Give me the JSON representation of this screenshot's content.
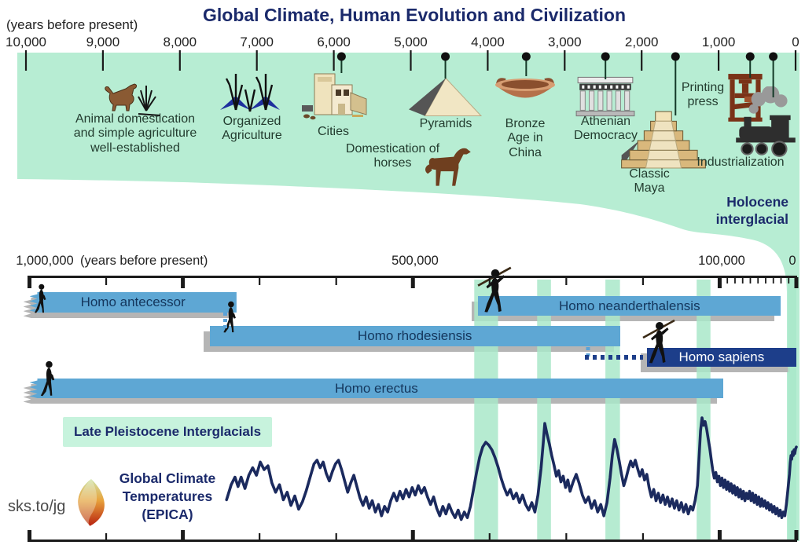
{
  "title": "Global Climate, Human Evolution and Civilization",
  "colors": {
    "panel_green": "#b7edd3",
    "band_green": "#a9e7c9",
    "bar_blue": "#5ea7d4",
    "bar_navy": "#1d3e8a",
    "shadow_gray": "#b5b5b5",
    "navy_text": "#1b2a6b",
    "curve_navy": "#1b2a5e",
    "event_text": "#233c2f"
  },
  "top_timeline": {
    "unit_label": "(years before present)",
    "ticks": [
      {
        "label": "10,000",
        "years": 10000
      },
      {
        "label": "9,000",
        "years": 9000
      },
      {
        "label": "8,000",
        "years": 8000
      },
      {
        "label": "7,000",
        "years": 7000
      },
      {
        "label": "6,000",
        "years": 6000
      },
      {
        "label": "5,000",
        "years": 5000
      },
      {
        "label": "4,000",
        "years": 4000
      },
      {
        "label": "3,000",
        "years": 3000
      },
      {
        "label": "2,000",
        "years": 2000
      },
      {
        "label": "1,000",
        "years": 1000
      },
      {
        "label": "0",
        "years": 0
      }
    ],
    "events": [
      {
        "label": "Animal domestication\nand simple agriculture\nwell-established",
        "icon": "dog-and-grass-icon",
        "pin_years": null
      },
      {
        "label": "Organized\nAgriculture",
        "icon": "grain-plants-icon",
        "pin_years": null
      },
      {
        "label": "Cities",
        "icon": "city-buildings-icon",
        "pin_years": 5900
      },
      {
        "label": "Domestication of\nhorses",
        "icon": "horse-icon",
        "pin_years": null
      },
      {
        "label": "Pyramids",
        "icon": "pyramid-icon",
        "pin_years": 4550
      },
      {
        "label": "Bronze\nAge in\nChina",
        "icon": "bronze-vessel-icon",
        "pin_years": 3500
      },
      {
        "label": "Athenian\nDemocracy",
        "icon": "parthenon-icon",
        "pin_years": 2470
      },
      {
        "label": "Classic\nMaya",
        "icon": "maya-pyramid-icon",
        "pin_years": 1560
      },
      {
        "label": "Printing\npress",
        "icon": "printing-press-icon",
        "pin_years": 590
      },
      {
        "label": "Industrialization",
        "icon": "locomotive-icon",
        "pin_years": 290
      }
    ],
    "era_label": "Holocene\ninterglacial"
  },
  "lower_timeline": {
    "labels": {
      "left": "1,000,000",
      "unit": "(years before present)",
      "middle": "500,000",
      "right": "100,000",
      "zero": "0"
    },
    "species": [
      {
        "name": "Homo antecessor",
        "from_years": 1000000,
        "to_years": 730000
      },
      {
        "name": "Homo neanderthalensis",
        "from_years": 415000,
        "to_years": 20000
      },
      {
        "name": "Homo rhodesiensis",
        "from_years": 765000,
        "to_years": 230000
      },
      {
        "name": "Homo sapiens",
        "from_years": 195000,
        "to_years": 0
      },
      {
        "name": "Homo erectus",
        "from_years": 1000000,
        "to_years": 95000
      }
    ],
    "interglacials_label": "Late Pleistocene Interglacials",
    "interglacial_bands_kyr": [
      [
        420,
        389
      ],
      [
        338,
        320
      ],
      [
        249,
        230
      ],
      [
        130,
        112
      ],
      [
        11,
        0
      ]
    ]
  },
  "climate": {
    "label": "Global Climate\nTemperatures\n(EPICA)"
  },
  "watermark": "sks.to/jg",
  "chart_data": {
    "type": "line",
    "title": "Global Climate Temperatures (EPICA)",
    "x_unit": "thousand years before present",
    "x_range": [
      743,
      0
    ],
    "y_unit": "relative temperature (axis unlabeled in figure)",
    "legend": "none",
    "grid": "off",
    "interglacial_bands_kyr": [
      [
        420,
        389
      ],
      [
        338,
        320
      ],
      [
        249,
        230
      ],
      [
        130,
        112
      ],
      [
        11,
        0
      ]
    ],
    "points_kyr_value": [
      [
        743,
        -5.2
      ],
      [
        737,
        -3.6
      ],
      [
        732,
        -2.8
      ],
      [
        728,
        -3.8
      ],
      [
        724,
        -2.8
      ],
      [
        719,
        -4.0
      ],
      [
        714,
        -2.6
      ],
      [
        709,
        -1.8
      ],
      [
        704,
        -2.6
      ],
      [
        699,
        -1.2
      ],
      [
        694,
        -2.0
      ],
      [
        689,
        -1.6
      ],
      [
        684,
        -3.4
      ],
      [
        679,
        -4.4
      ],
      [
        674,
        -3.6
      ],
      [
        669,
        -5.2
      ],
      [
        664,
        -4.4
      ],
      [
        659,
        -5.8
      ],
      [
        654,
        -4.8
      ],
      [
        649,
        -6.2
      ],
      [
        644,
        -5.4
      ],
      [
        639,
        -4.2
      ],
      [
        634,
        -2.8
      ],
      [
        629,
        -1.4
      ],
      [
        625,
        -1.0
      ],
      [
        621,
        -1.8
      ],
      [
        617,
        -1.2
      ],
      [
        613,
        -2.4
      ],
      [
        609,
        -3.2
      ],
      [
        605,
        -2.2
      ],
      [
        601,
        -1.4
      ],
      [
        597,
        -1.0
      ],
      [
        593,
        -2.0
      ],
      [
        589,
        -3.2
      ],
      [
        585,
        -4.4
      ],
      [
        581,
        -3.4
      ],
      [
        577,
        -2.6
      ],
      [
        573,
        -3.8
      ],
      [
        569,
        -5.0
      ],
      [
        565,
        -5.8
      ],
      [
        561,
        -4.9
      ],
      [
        557,
        -6.1
      ],
      [
        553,
        -5.3
      ],
      [
        549,
        -6.5
      ],
      [
        545,
        -5.7
      ],
      [
        541,
        -6.9
      ],
      [
        537,
        -5.9
      ],
      [
        533,
        -6.5
      ],
      [
        529,
        -5.3
      ],
      [
        525,
        -4.5
      ],
      [
        521,
        -5.3
      ],
      [
        517,
        -4.3
      ],
      [
        513,
        -5.1
      ],
      [
        509,
        -4.1
      ],
      [
        505,
        -4.9
      ],
      [
        501,
        -3.9
      ],
      [
        497,
        -4.7
      ],
      [
        493,
        -3.7
      ],
      [
        489,
        -4.5
      ],
      [
        485,
        -3.9
      ],
      [
        481,
        -4.9
      ],
      [
        477,
        -5.7
      ],
      [
        473,
        -4.9
      ],
      [
        469,
        -6.1
      ],
      [
        465,
        -6.9
      ],
      [
        461,
        -5.9
      ],
      [
        457,
        -6.7
      ],
      [
        453,
        -5.7
      ],
      [
        449,
        -6.5
      ],
      [
        445,
        -7.1
      ],
      [
        441,
        -6.3
      ],
      [
        437,
        -7.3
      ],
      [
        433,
        -6.5
      ],
      [
        429,
        -7.1
      ],
      [
        425,
        -5.9
      ],
      [
        421,
        -4.1
      ],
      [
        417,
        -2.3
      ],
      [
        413,
        -0.7
      ],
      [
        409,
        0.4
      ],
      [
        405,
        0.9
      ],
      [
        401,
        0.6
      ],
      [
        397,
        0.1
      ],
      [
        393,
        -0.7
      ],
      [
        389,
        -1.7
      ],
      [
        385,
        -2.9
      ],
      [
        381,
        -3.9
      ],
      [
        377,
        -4.7
      ],
      [
        373,
        -4.1
      ],
      [
        369,
        -5.1
      ],
      [
        365,
        -4.5
      ],
      [
        361,
        -5.5
      ],
      [
        357,
        -4.7
      ],
      [
        353,
        -5.7
      ],
      [
        349,
        -6.3
      ],
      [
        345,
        -5.5
      ],
      [
        341,
        -6.5
      ],
      [
        337,
        -4.7
      ],
      [
        333,
        -1.9
      ],
      [
        330,
        0.9
      ],
      [
        328,
        2.9
      ],
      [
        325,
        1.7
      ],
      [
        322,
        0.7
      ],
      [
        319,
        -0.5
      ],
      [
        316,
        -1.5
      ],
      [
        313,
        -2.7
      ],
      [
        310,
        -2.1
      ],
      [
        307,
        -3.3
      ],
      [
        304,
        -2.7
      ],
      [
        301,
        -3.9
      ],
      [
        298,
        -3.1
      ],
      [
        295,
        -4.3
      ],
      [
        291,
        -3.3
      ],
      [
        287,
        -2.5
      ],
      [
        283,
        -3.5
      ],
      [
        279,
        -4.7
      ],
      [
        275,
        -5.5
      ],
      [
        271,
        -4.9
      ],
      [
        267,
        -6.1
      ],
      [
        263,
        -5.3
      ],
      [
        259,
        -6.5
      ],
      [
        255,
        -5.7
      ],
      [
        251,
        -6.9
      ],
      [
        247,
        -5.5
      ],
      [
        243,
        -2.9
      ],
      [
        240,
        -0.5
      ],
      [
        237,
        1.2
      ],
      [
        234,
        0.2
      ],
      [
        231,
        -1.1
      ],
      [
        228,
        -2.5
      ],
      [
        225,
        -3.7
      ],
      [
        222,
        -2.9
      ],
      [
        219,
        -1.9
      ],
      [
        216,
        -1.1
      ],
      [
        213,
        -1.7
      ],
      [
        210,
        -1.0
      ],
      [
        207,
        -1.9
      ],
      [
        204,
        -2.7
      ],
      [
        201,
        -2.0
      ],
      [
        198,
        -3.1
      ],
      [
        195,
        -2.5
      ],
      [
        192,
        -3.9
      ],
      [
        189,
        -4.9
      ],
      [
        186,
        -4.1
      ],
      [
        183,
        -5.3
      ],
      [
        180,
        -4.5
      ],
      [
        177,
        -5.5
      ],
      [
        174,
        -4.7
      ],
      [
        171,
        -5.7
      ],
      [
        168,
        -4.9
      ],
      [
        165,
        -5.9
      ],
      [
        162,
        -5.1
      ],
      [
        159,
        -6.1
      ],
      [
        156,
        -5.3
      ],
      [
        153,
        -6.3
      ],
      [
        150,
        -5.5
      ],
      [
        147,
        -6.5
      ],
      [
        144,
        -5.7
      ],
      [
        141,
        -6.7
      ],
      [
        138,
        -5.9
      ],
      [
        135,
        -6.3
      ],
      [
        132,
        -5.3
      ],
      [
        129,
        -3.7
      ],
      [
        127,
        -0.9
      ],
      [
        125,
        2.1
      ],
      [
        123,
        3.5
      ],
      [
        121,
        2.7
      ],
      [
        119,
        3.1
      ],
      [
        117,
        2.3
      ],
      [
        115,
        1.3
      ],
      [
        113,
        0.3
      ],
      [
        111,
        -0.9
      ],
      [
        109,
        -2.1
      ],
      [
        107,
        -2.9
      ],
      [
        105,
        -2.3
      ],
      [
        103,
        -3.3
      ],
      [
        101,
        -2.7
      ],
      [
        99,
        -3.7
      ],
      [
        97,
        -2.9
      ],
      [
        95,
        -3.9
      ],
      [
        93,
        -3.1
      ],
      [
        91,
        -4.1
      ],
      [
        89,
        -3.3
      ],
      [
        87,
        -4.3
      ],
      [
        85,
        -3.5
      ],
      [
        83,
        -4.5
      ],
      [
        81,
        -3.7
      ],
      [
        79,
        -4.7
      ],
      [
        77,
        -3.9
      ],
      [
        75,
        -4.9
      ],
      [
        73,
        -4.1
      ],
      [
        71,
        -5.1
      ],
      [
        69,
        -4.3
      ],
      [
        67,
        -5.3
      ],
      [
        65,
        -4.5
      ],
      [
        63,
        -5.1
      ],
      [
        61,
        -4.3
      ],
      [
        59,
        -5.3
      ],
      [
        57,
        -4.5
      ],
      [
        55,
        -5.5
      ],
      [
        53,
        -4.7
      ],
      [
        51,
        -5.7
      ],
      [
        49,
        -4.9
      ],
      [
        47,
        -5.9
      ],
      [
        45,
        -5.1
      ],
      [
        43,
        -5.9
      ],
      [
        41,
        -5.3
      ],
      [
        39,
        -6.1
      ],
      [
        37,
        -5.5
      ],
      [
        35,
        -6.3
      ],
      [
        33,
        -5.7
      ],
      [
        31,
        -6.5
      ],
      [
        29,
        -5.9
      ],
      [
        27,
        -6.7
      ],
      [
        25,
        -6.1
      ],
      [
        23,
        -6.9
      ],
      [
        21,
        -6.3
      ],
      [
        19,
        -7.1
      ],
      [
        17,
        -6.5
      ],
      [
        15,
        -6.9
      ],
      [
        13,
        -5.7
      ],
      [
        11,
        -4.1
      ],
      [
        9,
        -2.5
      ],
      [
        8,
        -1.3
      ],
      [
        7,
        -0.5
      ],
      [
        6,
        -0.9
      ],
      [
        5,
        -0.1
      ],
      [
        4,
        -0.5
      ],
      [
        3,
        0.1
      ],
      [
        2,
        -0.3
      ],
      [
        1,
        0.2
      ],
      [
        0,
        0.4
      ]
    ]
  }
}
